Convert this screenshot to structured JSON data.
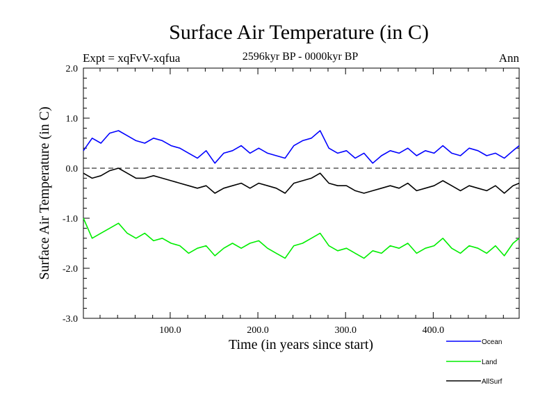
{
  "chart_data": {
    "type": "line",
    "title": "Surface Air Temperature (in C)",
    "subtitle": "2596kyr BP - 0000kyr BP",
    "expt_label": "Expt = xqFvV-xqfua",
    "season_label": "Ann",
    "xlabel": "Time (in years since start)",
    "ylabel": "Surface Air Temperature (in C)",
    "xlim": [
      1,
      498
    ],
    "ylim": [
      -3.0,
      2.0
    ],
    "x_ticks": [
      100,
      200,
      300,
      400
    ],
    "x_tick_labels": [
      "100.0",
      "200.0",
      "300.0",
      "400.0"
    ],
    "y_ticks": [
      2.0,
      1.0,
      0.0,
      -1.0,
      -2.0,
      -3.0
    ],
    "y_tick_labels": [
      "2.0",
      "1.0",
      "0.0",
      "-1.0",
      "-2.0",
      "-3.0"
    ],
    "reference_line": 0.0,
    "legend_position": "bottom-right",
    "x": [
      1,
      11,
      21,
      31,
      41,
      51,
      61,
      71,
      81,
      91,
      101,
      111,
      121,
      131,
      141,
      151,
      161,
      171,
      181,
      191,
      201,
      211,
      221,
      231,
      241,
      251,
      261,
      271,
      281,
      291,
      301,
      311,
      321,
      331,
      341,
      351,
      361,
      371,
      381,
      391,
      401,
      411,
      421,
      431,
      441,
      451,
      461,
      471,
      481,
      491,
      498
    ],
    "series": [
      {
        "name": "Ocean",
        "color": "#0000ff",
        "values": [
          0.35,
          0.6,
          0.5,
          0.7,
          0.75,
          0.65,
          0.55,
          0.5,
          0.6,
          0.55,
          0.45,
          0.4,
          0.3,
          0.2,
          0.35,
          0.1,
          0.3,
          0.35,
          0.45,
          0.3,
          0.4,
          0.3,
          0.25,
          0.2,
          0.45,
          0.55,
          0.6,
          0.75,
          0.4,
          0.3,
          0.35,
          0.2,
          0.3,
          0.1,
          0.25,
          0.35,
          0.3,
          0.4,
          0.25,
          0.35,
          0.3,
          0.45,
          0.3,
          0.25,
          0.4,
          0.35,
          0.25,
          0.3,
          0.2,
          0.35,
          0.45
        ]
      },
      {
        "name": "Land",
        "color": "#00ee00",
        "values": [
          -1.0,
          -1.4,
          -1.3,
          -1.2,
          -1.1,
          -1.3,
          -1.4,
          -1.3,
          -1.45,
          -1.4,
          -1.5,
          -1.55,
          -1.7,
          -1.6,
          -1.55,
          -1.75,
          -1.6,
          -1.5,
          -1.6,
          -1.5,
          -1.45,
          -1.6,
          -1.7,
          -1.8,
          -1.55,
          -1.5,
          -1.4,
          -1.3,
          -1.55,
          -1.65,
          -1.6,
          -1.7,
          -1.8,
          -1.65,
          -1.7,
          -1.55,
          -1.6,
          -1.5,
          -1.7,
          -1.6,
          -1.55,
          -1.4,
          -1.6,
          -1.7,
          -1.55,
          -1.6,
          -1.7,
          -1.55,
          -1.75,
          -1.5,
          -1.4
        ]
      },
      {
        "name": "AllSurf",
        "color": "#000000",
        "values": [
          -0.1,
          -0.2,
          -0.15,
          -0.05,
          0.0,
          -0.1,
          -0.2,
          -0.2,
          -0.15,
          -0.2,
          -0.25,
          -0.3,
          -0.35,
          -0.4,
          -0.35,
          -0.5,
          -0.4,
          -0.35,
          -0.3,
          -0.4,
          -0.3,
          -0.35,
          -0.4,
          -0.5,
          -0.3,
          -0.25,
          -0.2,
          -0.1,
          -0.3,
          -0.35,
          -0.35,
          -0.45,
          -0.5,
          -0.45,
          -0.4,
          -0.35,
          -0.4,
          -0.3,
          -0.45,
          -0.4,
          -0.35,
          -0.25,
          -0.35,
          -0.45,
          -0.35,
          -0.4,
          -0.45,
          -0.35,
          -0.5,
          -0.35,
          -0.3
        ]
      }
    ]
  }
}
